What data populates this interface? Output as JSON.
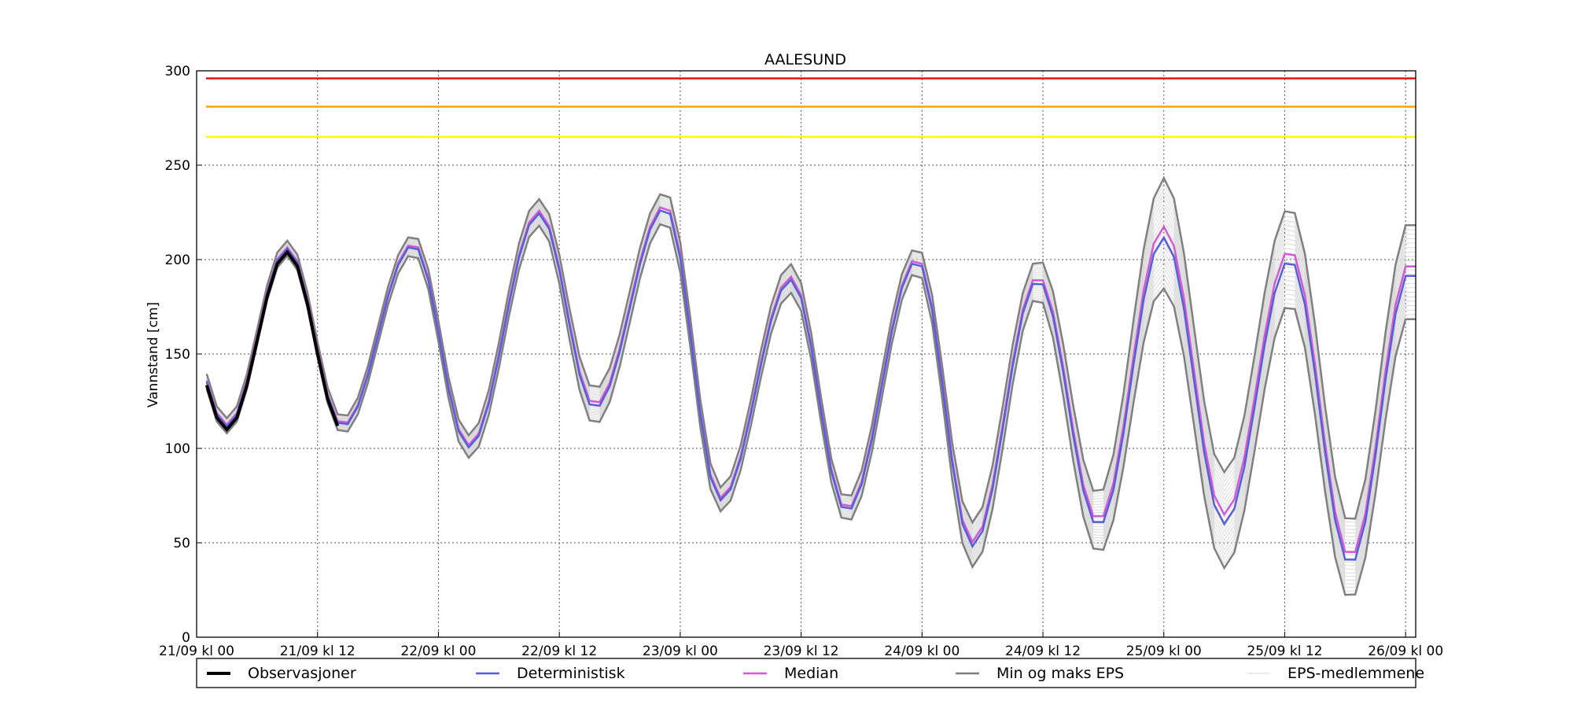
{
  "chart_data": {
    "type": "line",
    "title": "AALESUND",
    "ylabel": "Vannstand [cm]",
    "xlabel": "",
    "ylim": [
      0,
      300
    ],
    "xlim_hours": [
      0,
      121
    ],
    "yticks": [
      0,
      50,
      100,
      150,
      200,
      250,
      300
    ],
    "xticks": [
      {
        "hour": 0,
        "label": "21/09 kl 00"
      },
      {
        "hour": 12,
        "label": "21/09 kl 12"
      },
      {
        "hour": 24,
        "label": "22/09 kl 00"
      },
      {
        "hour": 36,
        "label": "22/09 kl 12"
      },
      {
        "hour": 48,
        "label": "23/09 kl 00"
      },
      {
        "hour": 60,
        "label": "23/09 kl 12"
      },
      {
        "hour": 72,
        "label": "24/09 kl 00"
      },
      {
        "hour": 84,
        "label": "24/09 kl 12"
      },
      {
        "hour": 96,
        "label": "25/09 kl 00"
      },
      {
        "hour": 108,
        "label": "25/09 kl 12"
      },
      {
        "hour": 120,
        "label": "26/09 kl 00"
      }
    ],
    "grid": true,
    "legend_position": "bottom",
    "thresholds": [
      {
        "value": 296,
        "color": "#ee1111"
      },
      {
        "value": 281,
        "color": "#ffa500"
      },
      {
        "value": 265,
        "color": "#ffff00"
      }
    ],
    "tide": {
      "start_hour": 1,
      "end_hour": 121,
      "step_hours": 1,
      "peaks": [
        [
          9,
          206
        ],
        [
          21.5,
          208
        ],
        [
          34,
          225
        ],
        [
          46.5,
          228
        ],
        [
          59,
          190
        ],
        [
          71.5,
          200
        ],
        [
          83.5,
          190
        ],
        [
          96,
          214
        ],
        [
          108.5,
          202
        ],
        [
          120.5,
          196
        ]
      ],
      "troughs": [
        [
          3,
          112
        ],
        [
          14.5,
          112
        ],
        [
          27,
          101
        ],
        [
          39.5,
          122
        ],
        [
          52,
          73
        ],
        [
          64.5,
          67
        ],
        [
          77,
          49
        ],
        [
          89.5,
          60
        ],
        [
          102,
          62
        ],
        [
          114.5,
          40
        ]
      ]
    },
    "series": [
      {
        "name": "Observasjoner",
        "color": "#000000",
        "role": "observed",
        "hours": [
          1,
          14
        ]
      },
      {
        "name": "Deterministisk",
        "color": "#5560d8",
        "role": "deterministic"
      },
      {
        "name": "Median",
        "color": "#d25ad2",
        "role": "median"
      },
      {
        "name": "Min og maks EPS",
        "color": "#808080",
        "role": "minmax",
        "spread_top": [
          [
            9,
            4
          ],
          [
            21.5,
            5
          ],
          [
            34,
            7
          ],
          [
            46.5,
            8
          ],
          [
            59,
            8
          ],
          [
            71.5,
            6
          ],
          [
            83.5,
            9
          ],
          [
            96,
            30
          ],
          [
            108.5,
            26
          ],
          [
            120.5,
            26
          ]
        ],
        "spread_bottom": [
          [
            3,
            4
          ],
          [
            14.5,
            4
          ],
          [
            27,
            6
          ],
          [
            39.5,
            11
          ],
          [
            52,
            6
          ],
          [
            64.5,
            6
          ],
          [
            77,
            12
          ],
          [
            89.5,
            15
          ],
          [
            102,
            25
          ],
          [
            114.5,
            20
          ]
        ]
      },
      {
        "name": "EPS-medlemmene",
        "color": "#d9d9d9",
        "role": "members",
        "count": 20
      }
    ]
  }
}
